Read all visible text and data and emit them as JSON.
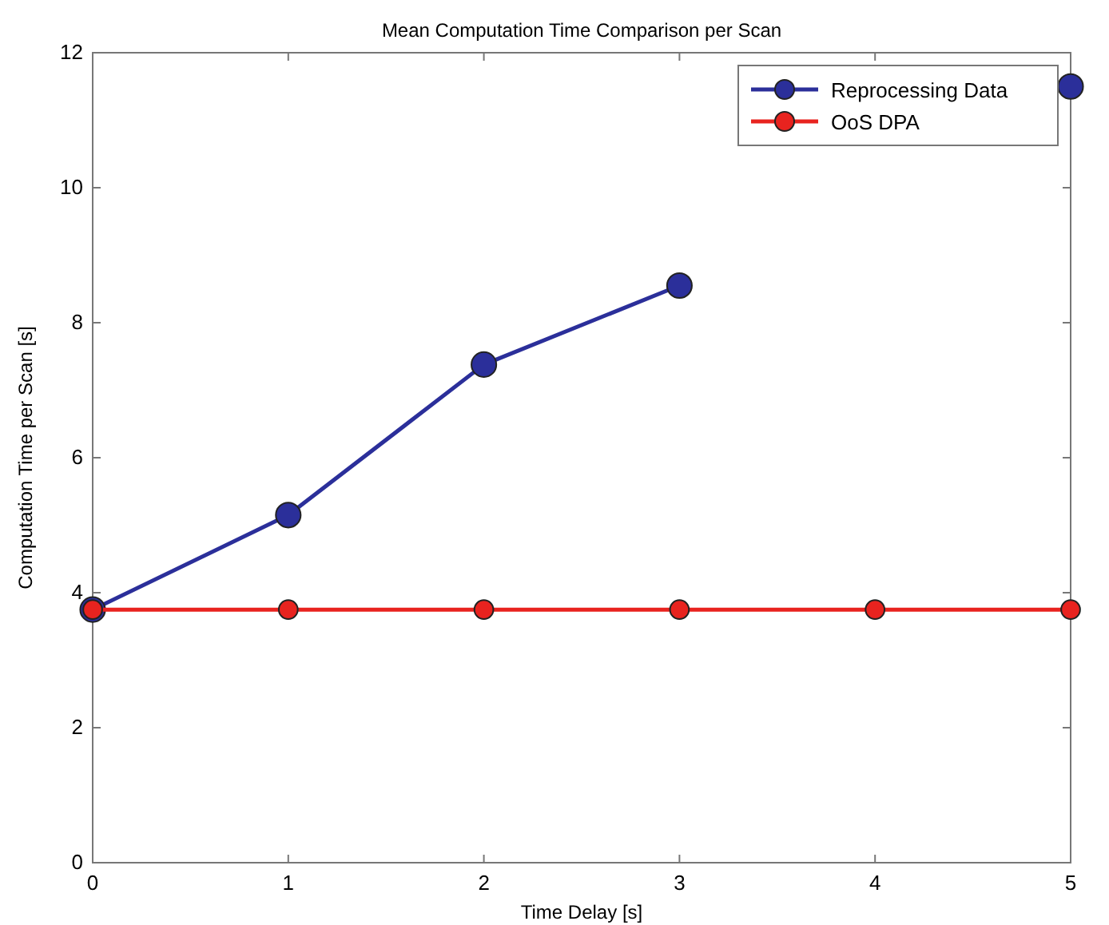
{
  "chart_data": {
    "type": "line",
    "title": "Mean Computation Time Comparison per Scan",
    "xlabel": "Time Delay [s]",
    "ylabel": "Computation Time per Scan [s]",
    "x": [
      0,
      1,
      2,
      3,
      4,
      5
    ],
    "series": [
      {
        "name": "Reprocessing Data",
        "color": "#2b2f9a",
        "values": [
          3.75,
          5.15,
          7.38,
          8.55,
          null,
          11.5
        ]
      },
      {
        "name": "OoS DPA",
        "color": "#e8231f",
        "values": [
          3.75,
          3.75,
          3.75,
          3.75,
          3.75,
          3.75
        ]
      }
    ],
    "xlim": [
      0,
      5
    ],
    "xticks": [
      0,
      1,
      2,
      3,
      4,
      5
    ],
    "ylim": [
      0,
      12
    ],
    "yticks": [
      0,
      2,
      4,
      6,
      8,
      10,
      12
    ],
    "grid": false,
    "legend": "top right",
    "marker": "circle",
    "line_style": "solid"
  }
}
